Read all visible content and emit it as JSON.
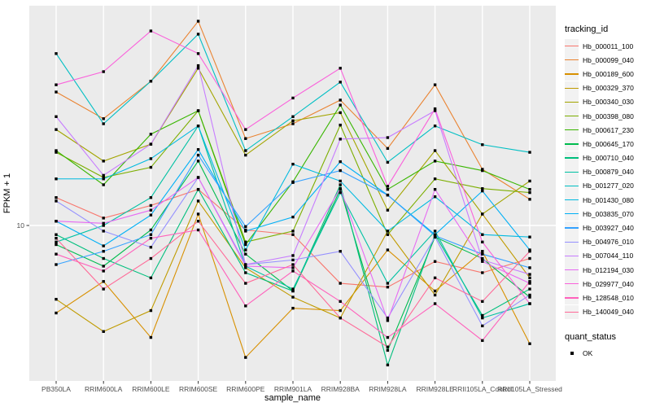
{
  "figure": {
    "background": "#FFFFFF",
    "panel_bg": "#EBEBEB",
    "grid_color": "#FFFFFF",
    "tick_text_color": "#4D4D4D",
    "axis_title_color": "#000000",
    "legend_key_bg": "#F2F2F2",
    "marker_color": "#000000"
  },
  "chart_data": {
    "type": "line",
    "title": "",
    "xlabel": "sample_name",
    "ylabel": "FPKM + 1",
    "y_scale": "log10",
    "y_ticks": [
      10
    ],
    "ylim": [
      2.4,
      74
    ],
    "grid": "major-only",
    "legend_position": "right",
    "categories": [
      "PB350LA",
      "RRIM600LA",
      "RRIM600LE",
      "RRIM600SE",
      "RRIM600PE",
      "RRIM901LA",
      "RRIM928BA",
      "RRIM928LA",
      "RRIM928LE",
      "RRII105LA_Control",
      "RRII105LA_Stressed"
    ],
    "series": [
      {
        "name": "Hb_000011_100",
        "color": "#F8766D",
        "values": [
          12.9,
          10.7,
          12.0,
          13.9,
          9.6,
          9.2,
          5.9,
          5.7,
          7.2,
          6.5,
          7.4
        ]
      },
      {
        "name": "Hb_000099_040",
        "color": "#EA8331",
        "values": [
          33.8,
          26.5,
          37.3,
          64.5,
          22.1,
          25.3,
          31.4,
          20.2,
          36.1,
          16.7,
          12.7
        ]
      },
      {
        "name": "Hb_000189_600",
        "color": "#D89000",
        "values": [
          4.5,
          6.0,
          3.6,
          11.1,
          3.0,
          4.7,
          4.6,
          8.0,
          5.5,
          7.9,
          3.4
        ]
      },
      {
        "name": "Hb_000329_370",
        "color": "#C09B00",
        "values": [
          5.1,
          3.8,
          4.6,
          12.5,
          6.8,
          5.2,
          4.3,
          9.5,
          5.3,
          11.1,
          6.2
        ]
      },
      {
        "name": "Hb_000340_030",
        "color": "#A3A500",
        "values": [
          24.0,
          18.0,
          21.0,
          42.0,
          19.0,
          26.0,
          28.0,
          11.5,
          19.8,
          11.1,
          15.0
        ]
      },
      {
        "name": "Hb_000398_080",
        "color": "#7CAE00",
        "values": [
          19.5,
          15.5,
          17.0,
          28.5,
          8.6,
          9.5,
          25.0,
          9.2,
          15.3,
          14.0,
          13.5
        ]
      },
      {
        "name": "Hb_000617_230",
        "color": "#39B600",
        "values": [
          19.8,
          14.5,
          23.0,
          28.5,
          8.4,
          14.9,
          30.0,
          13.9,
          18.0,
          16.5,
          13.9
        ]
      },
      {
        "name": "Hb_000645_170",
        "color": "#00BB4E",
        "values": [
          8.4,
          6.9,
          9.6,
          18.0,
          7.7,
          5.5,
          13.9,
          3.2,
          9.0,
          7.4,
          5.2
        ]
      },
      {
        "name": "Hb_000710_040",
        "color": "#00BF7D",
        "values": [
          9.2,
          7.4,
          6.2,
          13.9,
          6.5,
          5.5,
          14.5,
          2.8,
          9.2,
          4.4,
          5.6
        ]
      },
      {
        "name": "Hb_000879_040",
        "color": "#00C1A3",
        "values": [
          8.6,
          10.0,
          12.9,
          24.8,
          6.9,
          5.6,
          13.5,
          5.9,
          9.5,
          4.3,
          4.9
        ]
      },
      {
        "name": "Hb_001277_020",
        "color": "#00BFC4",
        "values": [
          48.0,
          25.3,
          37.3,
          57.3,
          19.8,
          27.0,
          37.0,
          17.8,
          24.8,
          20.9,
          19.5
        ]
      },
      {
        "name": "Hb_001430_080",
        "color": "#00BAE0",
        "values": [
          15.3,
          15.3,
          18.4,
          24.8,
          8.0,
          17.5,
          15.0,
          9.5,
          13.0,
          9.2,
          9.0
        ]
      },
      {
        "name": "Hb_003835_070",
        "color": "#00B0F6",
        "values": [
          10.4,
          8.3,
          11.0,
          20.0,
          9.5,
          10.8,
          17.9,
          13.2,
          9.2,
          13.7,
          8.0
        ]
      },
      {
        "name": "Hb_003927_040",
        "color": "#35A2FF",
        "values": [
          7.0,
          7.9,
          9.2,
          19.0,
          9.9,
          14.8,
          16.5,
          13.2,
          9.1,
          7.7,
          6.8
        ]
      },
      {
        "name": "Hb_004976_010",
        "color": "#9590FF",
        "values": [
          12.5,
          9.5,
          8.2,
          15.5,
          7.0,
          7.3,
          7.9,
          4.3,
          9.0,
          4.0,
          5.3
        ]
      },
      {
        "name": "Hb_007044_110",
        "color": "#C77CFF",
        "values": [
          27.0,
          15.8,
          21.0,
          43.0,
          7.0,
          7.6,
          22.0,
          22.3,
          28.5,
          7.3,
          6.4
        ]
      },
      {
        "name": "Hb_012194_030",
        "color": "#E76BF3",
        "values": [
          10.4,
          10.2,
          11.5,
          15.5,
          6.9,
          6.8,
          14.0,
          4.2,
          13.9,
          7.2,
          5.9
        ]
      },
      {
        "name": "Hb_029977_040",
        "color": "#FA62DB",
        "values": [
          36.1,
          40.7,
          59.0,
          48.0,
          24.0,
          32.0,
          42.0,
          14.3,
          29.0,
          8.6,
          4.9
        ]
      },
      {
        "name": "Hb_128548_010",
        "color": "#FF62BC",
        "values": [
          7.7,
          6.6,
          8.9,
          9.6,
          4.8,
          6.6,
          5.0,
          3.6,
          4.9,
          3.5,
          6.0
        ]
      },
      {
        "name": "Hb_140049_040",
        "color": "#FF6A98",
        "values": [
          8.9,
          5.6,
          7.4,
          10.4,
          5.9,
          7.0,
          4.3,
          3.3,
          6.2,
          5.0,
          7.9
        ]
      }
    ],
    "legends": {
      "tracking_id_title": "tracking_id",
      "quant_status_title": "quant_status",
      "quant_status_items": [
        {
          "label": "OK",
          "marker": "black-square"
        }
      ]
    }
  }
}
